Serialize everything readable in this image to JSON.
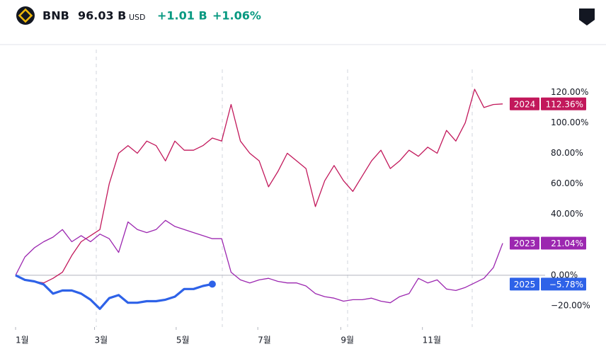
{
  "header": {
    "symbol": "BNB",
    "value": "96.03 B",
    "currency": "USD",
    "change": "+1.01 B",
    "change_pct": "+1.06%"
  },
  "chart_data": {
    "type": "line",
    "x": [
      0,
      7,
      14,
      21,
      28,
      35,
      42,
      49,
      56,
      63,
      70,
      77,
      84,
      91,
      98,
      105,
      112,
      119,
      126,
      133,
      140,
      147,
      154,
      161,
      168,
      175,
      182,
      189,
      196,
      203,
      210,
      217,
      224,
      231,
      238,
      245,
      252,
      259,
      266,
      273,
      280,
      287,
      294,
      301,
      308,
      315,
      322,
      329,
      336,
      343,
      350,
      357,
      364
    ],
    "xlim": [
      0,
      365
    ],
    "xticks": [
      {
        "value": 0,
        "label": "1월"
      },
      {
        "value": 59,
        "label": "3월"
      },
      {
        "value": 120,
        "label": "5월"
      },
      {
        "value": 181,
        "label": "7월"
      },
      {
        "value": 243,
        "label": "9월"
      },
      {
        "value": 304,
        "label": "11월"
      }
    ],
    "ylim": [
      -33,
      148
    ],
    "yticks": [
      {
        "value": 120,
        "label": "120.00%"
      },
      {
        "value": 100,
        "label": "100.00%"
      },
      {
        "value": 80,
        "label": "80.00%"
      },
      {
        "value": 60,
        "label": "60.00%"
      },
      {
        "value": 40,
        "label": "40.00%"
      },
      {
        "value": 0,
        "label": "0.00%"
      },
      {
        "value": -20,
        "label": "−20.00%"
      }
    ],
    "grid": false,
    "series": [
      {
        "name": "2024",
        "color": "#c2185b",
        "width": 1.3,
        "values": [
          0,
          -3,
          -4,
          -5,
          -2,
          2,
          13,
          22,
          26,
          30,
          60,
          80,
          85,
          80,
          88,
          85,
          75,
          88,
          82,
          82,
          85,
          90,
          88,
          112,
          88,
          80,
          75,
          58,
          68,
          80,
          75,
          70,
          45,
          62,
          72,
          62,
          55,
          65,
          75,
          82,
          70,
          75,
          82,
          78,
          84,
          80,
          95,
          88,
          100,
          122,
          110,
          112,
          112.36
        ],
        "value_labels": [
          null,
          null,
          null,
          null,
          null,
          null,
          null,
          null,
          null,
          null,
          null,
          null,
          null,
          null,
          null,
          null,
          null,
          null,
          null,
          null,
          null,
          null,
          null,
          null,
          null,
          null,
          null,
          null,
          null,
          null,
          null,
          null,
          null,
          null,
          null,
          null,
          null,
          null,
          null,
          null,
          null,
          null,
          null,
          null,
          null,
          null,
          null,
          null,
          null,
          null,
          null,
          null,
          "112.36%"
        ]
      },
      {
        "name": "2023",
        "color": "#9c27b0",
        "width": 1.3,
        "values": [
          0,
          12,
          18,
          22,
          25,
          30,
          22,
          26,
          22,
          27,
          24,
          15,
          35,
          30,
          28,
          30,
          36,
          32,
          30,
          28,
          26,
          24,
          24,
          2,
          -3,
          -5,
          -3,
          -2,
          -4,
          -5,
          -5,
          -7,
          -12,
          -14,
          -15,
          -17,
          -16,
          -16,
          -15,
          -17,
          -18,
          -14,
          -12,
          -2,
          -5,
          -3,
          -9,
          -10,
          -8,
          -5,
          -2,
          5,
          21.04
        ],
        "value_labels": [
          null,
          null,
          null,
          null,
          null,
          null,
          null,
          null,
          null,
          null,
          null,
          null,
          null,
          null,
          null,
          null,
          null,
          null,
          null,
          null,
          null,
          null,
          null,
          null,
          null,
          null,
          null,
          null,
          null,
          null,
          null,
          null,
          null,
          null,
          null,
          null,
          null,
          null,
          null,
          null,
          null,
          null,
          null,
          null,
          null,
          null,
          null,
          null,
          null,
          null,
          null,
          null,
          "21.04%"
        ]
      },
      {
        "name": "2025",
        "color": "#2e62e8",
        "width": 3.2,
        "values": [
          0,
          -3,
          -4,
          -6,
          -12,
          -10,
          -10,
          -12,
          -16,
          -22,
          -15,
          -13,
          -18,
          -18,
          -17,
          -17,
          -16,
          -14,
          -9,
          -9,
          -7,
          -5.78,
          null,
          null,
          null,
          null,
          null,
          null,
          null,
          null,
          null,
          null,
          null,
          null,
          null,
          null,
          null,
          null,
          null,
          null,
          null,
          null,
          null,
          null,
          null,
          null,
          null,
          null,
          null,
          null,
          null,
          null,
          null
        ],
        "value_labels": [
          null,
          null,
          null,
          null,
          null,
          null,
          null,
          null,
          null,
          null,
          null,
          null,
          null,
          null,
          null,
          null,
          null,
          null,
          null,
          null,
          null,
          "−5.78%",
          null,
          null,
          null,
          null,
          null,
          null,
          null,
          null,
          null,
          null,
          null,
          null,
          null,
          null,
          null,
          null,
          null,
          null,
          null,
          null,
          null,
          null,
          null,
          null,
          null,
          null,
          null,
          null,
          null,
          null,
          null
        ]
      }
    ]
  }
}
